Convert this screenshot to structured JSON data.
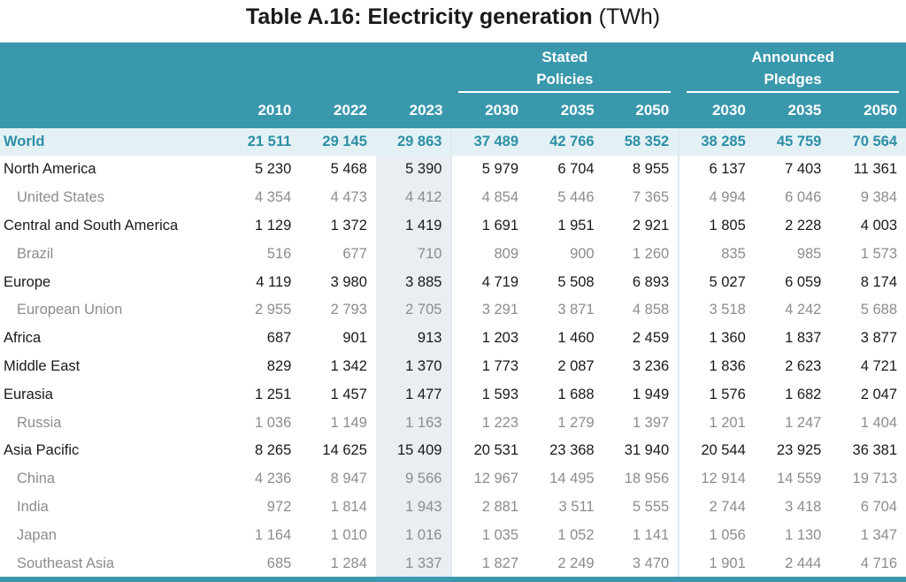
{
  "title": {
    "main": "Table A.16: Electricity generation",
    "unit": "(TWh)"
  },
  "header": {
    "group_stated": "Stated\nPolicies",
    "group_announced": "Announced\nPledges",
    "years": [
      "2010",
      "2022",
      "2023",
      "2030",
      "2035",
      "2050",
      "2030",
      "2035",
      "2050"
    ]
  },
  "rows": [
    {
      "label": "World",
      "type": "world",
      "values": [
        "21 511",
        "29 145",
        "29 863",
        "37 489",
        "42 766",
        "58 352",
        "38 285",
        "45 759",
        "70 564"
      ]
    },
    {
      "label": "North America",
      "type": "region",
      "values": [
        "5 230",
        "5 468",
        "5 390",
        "5 979",
        "6 704",
        "8 955",
        "6 137",
        "7 403",
        "11 361"
      ]
    },
    {
      "label": "United States",
      "type": "sub",
      "values": [
        "4 354",
        "4 473",
        "4 412",
        "4 854",
        "5 446",
        "7 365",
        "4 994",
        "6 046",
        "9 384"
      ]
    },
    {
      "label": "Central and South America",
      "type": "region",
      "values": [
        "1 129",
        "1 372",
        "1 419",
        "1 691",
        "1 951",
        "2 921",
        "1 805",
        "2 228",
        "4 003"
      ]
    },
    {
      "label": "Brazil",
      "type": "sub",
      "values": [
        "516",
        "677",
        "710",
        "809",
        "900",
        "1 260",
        "835",
        "985",
        "1 573"
      ]
    },
    {
      "label": "Europe",
      "type": "region",
      "values": [
        "4 119",
        "3 980",
        "3 885",
        "4 719",
        "5 508",
        "6 893",
        "5 027",
        "6 059",
        "8 174"
      ]
    },
    {
      "label": "European Union",
      "type": "sub",
      "values": [
        "2 955",
        "2 793",
        "2 705",
        "3 291",
        "3 871",
        "4 858",
        "3 518",
        "4 242",
        "5 688"
      ]
    },
    {
      "label": "Africa",
      "type": "region",
      "values": [
        "687",
        "901",
        "913",
        "1 203",
        "1 460",
        "2 459",
        "1 360",
        "1 837",
        "3 877"
      ]
    },
    {
      "label": "Middle East",
      "type": "region",
      "values": [
        "829",
        "1 342",
        "1 370",
        "1 773",
        "2 087",
        "3 236",
        "1 836",
        "2 623",
        "4 721"
      ]
    },
    {
      "label": "Eurasia",
      "type": "region",
      "values": [
        "1 251",
        "1 457",
        "1 477",
        "1 593",
        "1 688",
        "1 949",
        "1 576",
        "1 682",
        "2 047"
      ]
    },
    {
      "label": "Russia",
      "type": "sub",
      "values": [
        "1 036",
        "1 149",
        "1 163",
        "1 223",
        "1 279",
        "1 397",
        "1 201",
        "1 247",
        "1 404"
      ]
    },
    {
      "label": "Asia Pacific",
      "type": "region",
      "values": [
        "8 265",
        "14 625",
        "15 409",
        "20 531",
        "23 368",
        "31 940",
        "20 544",
        "23 925",
        "36 381"
      ]
    },
    {
      "label": "China",
      "type": "sub",
      "values": [
        "4 236",
        "8 947",
        "9 566",
        "12 967",
        "14 495",
        "18 956",
        "12 914",
        "14 559",
        "19 713"
      ]
    },
    {
      "label": "India",
      "type": "sub",
      "values": [
        "972",
        "1 814",
        "1 943",
        "2 881",
        "3 511",
        "5 555",
        "2 744",
        "3 418",
        "6 704"
      ]
    },
    {
      "label": "Japan",
      "type": "sub",
      "values": [
        "1 164",
        "1 010",
        "1 016",
        "1 035",
        "1 052",
        "1 141",
        "1 056",
        "1 130",
        "1 347"
      ]
    },
    {
      "label": "Southeast Asia",
      "type": "sub",
      "values": [
        "685",
        "1 284",
        "1 337",
        "1 827",
        "2 249",
        "3 470",
        "1 901",
        "2 444",
        "4 716"
      ]
    }
  ],
  "colors": {
    "header": "#3a98ad",
    "world_text": "#2d8ea5",
    "world_bg": "#e3f1f5",
    "sub_text": "#8c8c8c",
    "shade_2023": "#e8eef2"
  }
}
